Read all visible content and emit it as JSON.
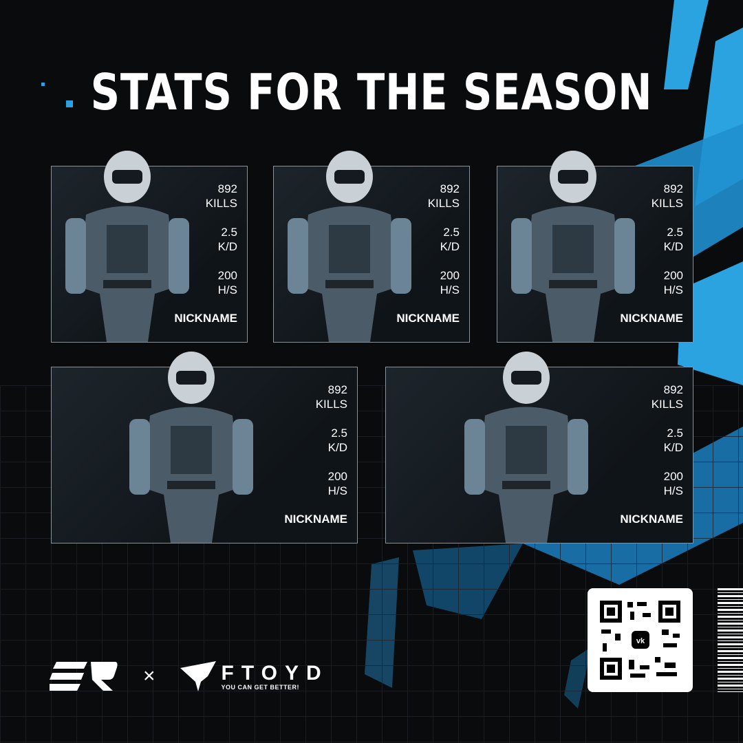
{
  "title": "STATS FOR THE SEASON",
  "accent": "#2aa3e0",
  "cards": [
    {
      "kills": "892",
      "kills_label": "KILLS",
      "kd": "2.5",
      "kd_label": "K/D",
      "hs": "200",
      "hs_label": "H/S",
      "nickname": "NICKNAME"
    },
    {
      "kills": "892",
      "kills_label": "KILLS",
      "kd": "2.5",
      "kd_label": "K/D",
      "hs": "200",
      "hs_label": "H/S",
      "nickname": "NICKNAME"
    },
    {
      "kills": "892",
      "kills_label": "KILLS",
      "kd": "2.5",
      "kd_label": "K/D",
      "hs": "200",
      "hs_label": "H/S",
      "nickname": "NICKNAME"
    },
    {
      "kills": "892",
      "kills_label": "KILLS",
      "kd": "2.5",
      "kd_label": "K/D",
      "hs": "200",
      "hs_label": "H/S",
      "nickname": "NICKNAME"
    },
    {
      "kills": "892",
      "kills_label": "KILLS",
      "kd": "2.5",
      "kd_label": "K/D",
      "hs": "200",
      "hs_label": "H/S",
      "nickname": "NICKNAME"
    }
  ],
  "footer": {
    "logo_er": "ER",
    "separator": "×",
    "brand": "FTOYD",
    "tagline": "YOU CAN GET BETTER!",
    "qr_icon": "vk-icon"
  }
}
